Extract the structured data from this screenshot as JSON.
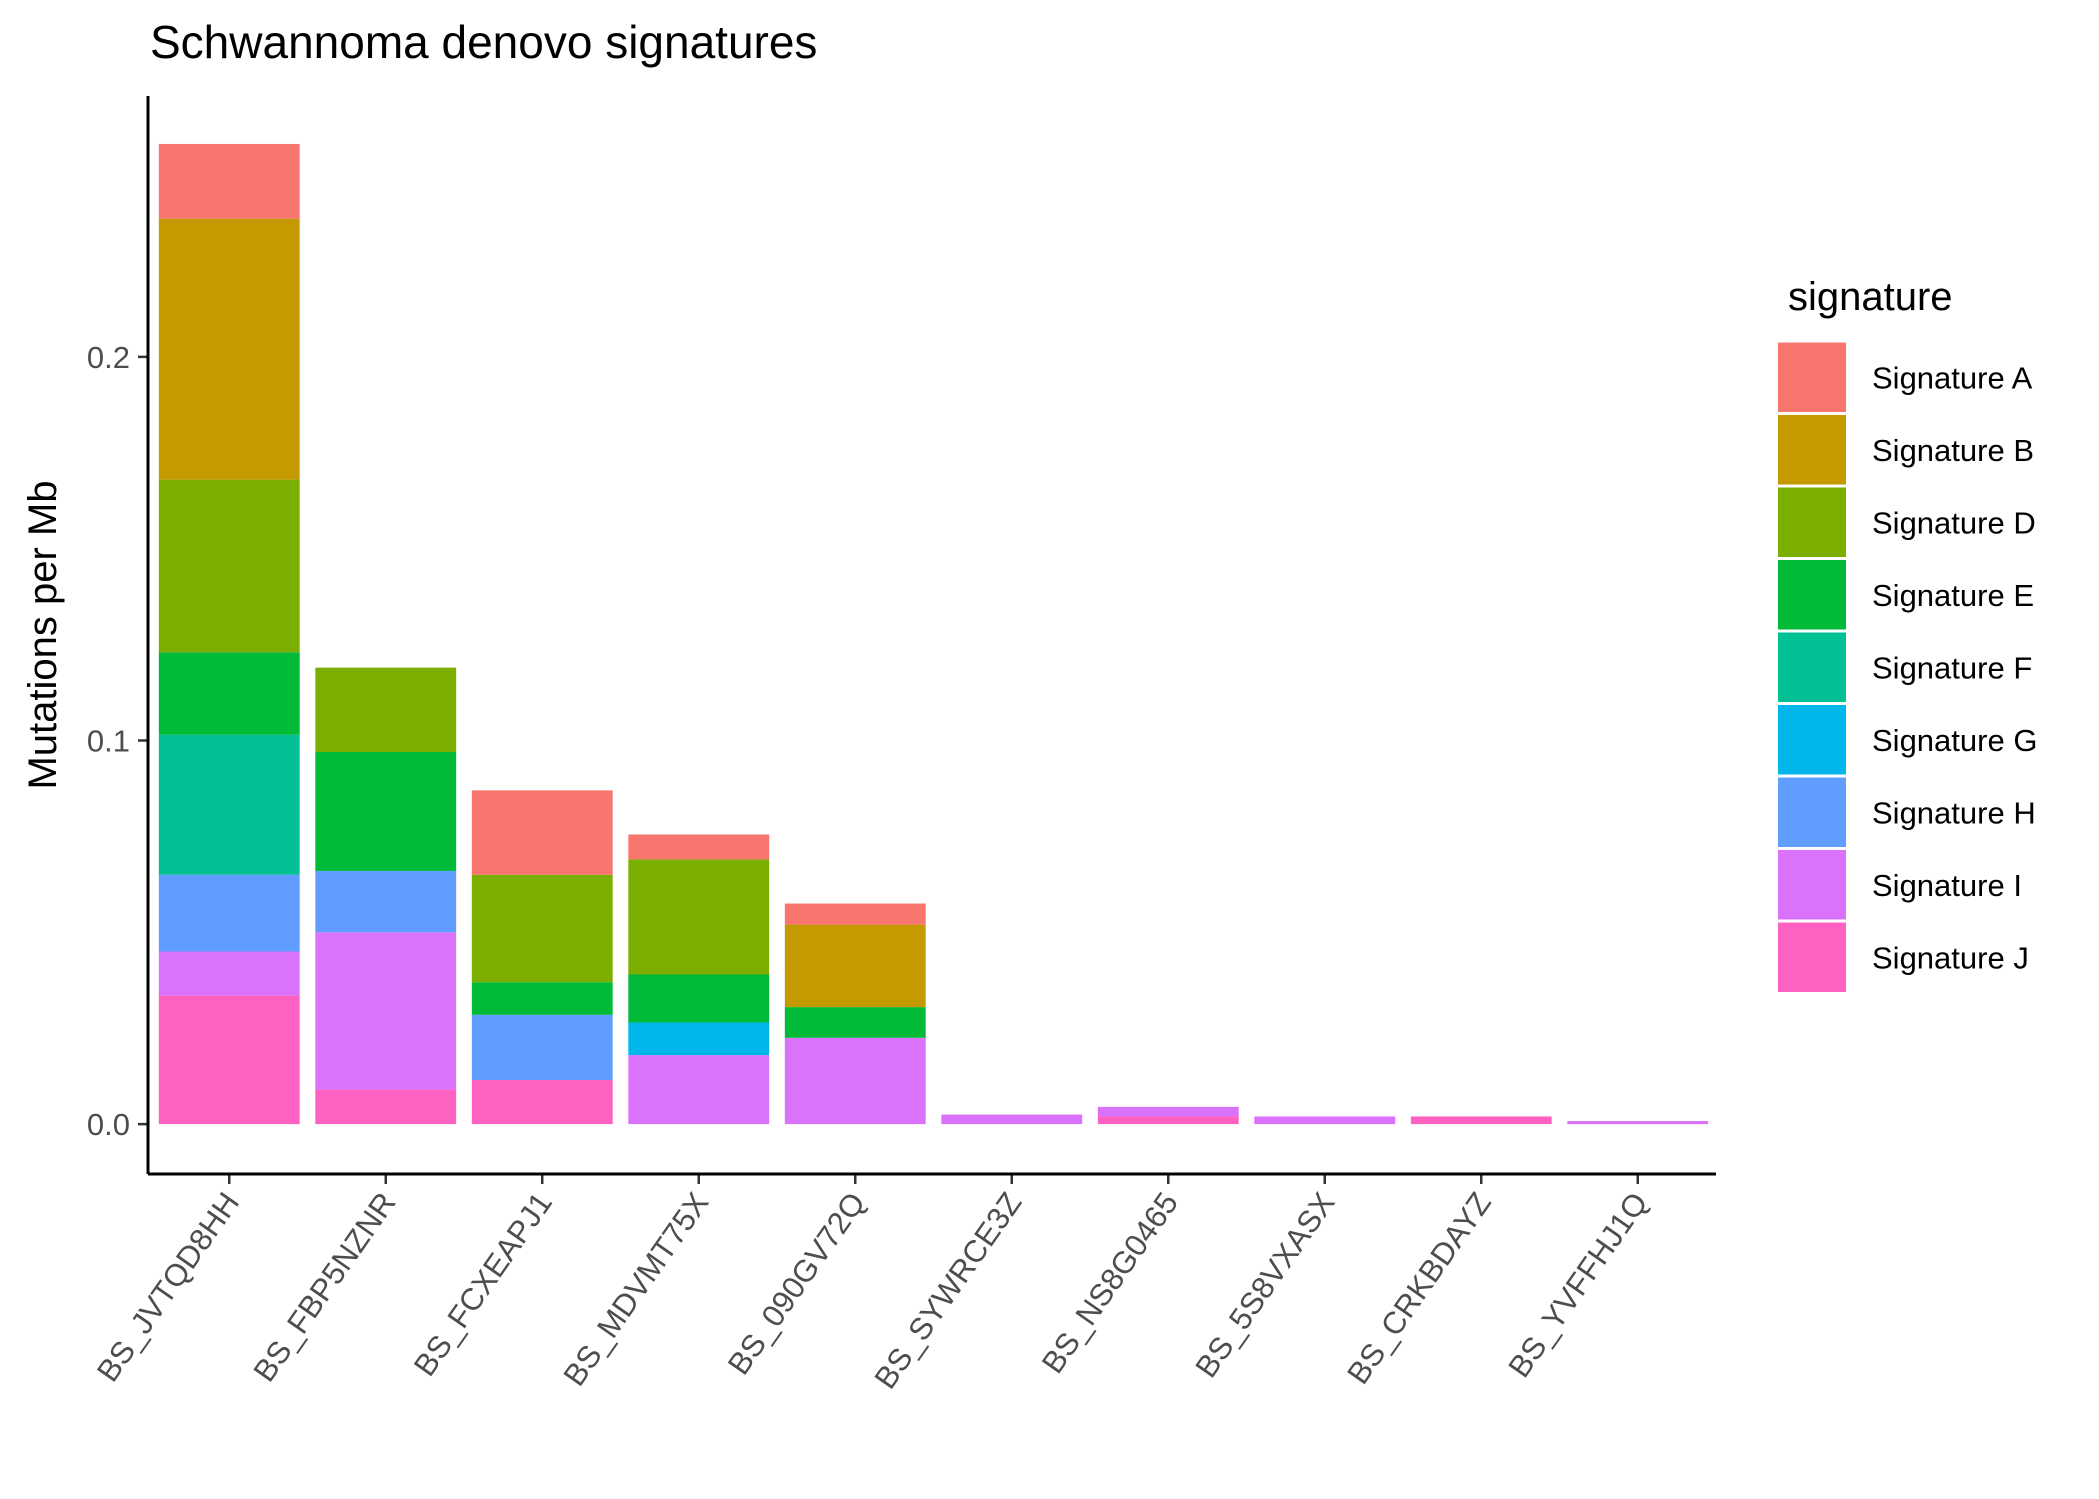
{
  "chart_data": {
    "type": "bar",
    "stacked": true,
    "title": "Schwannoma denovo signatures",
    "xlabel": "",
    "ylabel": "Mutations per Mb",
    "ylim": [
      -0.013,
      0.268
    ],
    "yticks": [
      0.0,
      0.1,
      0.2
    ],
    "ytick_labels": [
      "0.0",
      "0.1",
      "0.2"
    ],
    "grid": false,
    "legend": {
      "title": "signature",
      "position": "right"
    },
    "categories": [
      "BS_JVTQD8HH",
      "BS_FBP5NZNR",
      "BS_FCXEAPJ1",
      "BS_MDVMT75X",
      "BS_090GV72Q",
      "BS_SYWRCE3Z",
      "BS_NS8G0465",
      "BS_5S8VXASX",
      "BS_CRKBDAYZ",
      "BS_YVFFHJ1Q"
    ],
    "stack_order_bottom_to_top": [
      "Signature J",
      "Signature I",
      "Signature H",
      "Signature G",
      "Signature F",
      "Signature E",
      "Signature D",
      "Signature B",
      "Signature A"
    ],
    "series": [
      {
        "name": "Signature A",
        "color": "#F8766D",
        "values": [
          0.0195,
          0,
          0.022,
          0.0065,
          0.0055,
          0,
          0,
          0,
          0,
          0
        ]
      },
      {
        "name": "Signature B",
        "color": "#C49A00",
        "values": [
          0.068,
          0,
          0,
          0,
          0.0215,
          0,
          0,
          0,
          0,
          0
        ]
      },
      {
        "name": "Signature D",
        "color": "#7CAE00",
        "values": [
          0.045,
          0.022,
          0.028,
          0.03,
          0,
          0,
          0,
          0,
          0,
          0
        ]
      },
      {
        "name": "Signature E",
        "color": "#00BA38",
        "values": [
          0.0215,
          0.031,
          0.0085,
          0.0125,
          0.008,
          0,
          0,
          0,
          0,
          0
        ]
      },
      {
        "name": "Signature F",
        "color": "#00C094",
        "values": [
          0.0365,
          0,
          0,
          0,
          0,
          0,
          0,
          0,
          0,
          0
        ]
      },
      {
        "name": "Signature G",
        "color": "#00B6EB",
        "values": [
          0,
          0,
          0,
          0.0085,
          0,
          0,
          0,
          0,
          0,
          0
        ]
      },
      {
        "name": "Signature H",
        "color": "#619CFF",
        "values": [
          0.02,
          0.016,
          0.017,
          0,
          0,
          0,
          0,
          0,
          0,
          0
        ]
      },
      {
        "name": "Signature I",
        "color": "#DB72FB",
        "values": [
          0.0115,
          0.041,
          0,
          0.018,
          0.0225,
          0.0025,
          0.0025,
          0.002,
          0,
          0.0008
        ]
      },
      {
        "name": "Signature J",
        "color": "#FF61C3",
        "values": [
          0.0335,
          0.009,
          0.0115,
          0,
          0,
          0,
          0.002,
          0,
          0.002,
          0
        ]
      }
    ]
  }
}
